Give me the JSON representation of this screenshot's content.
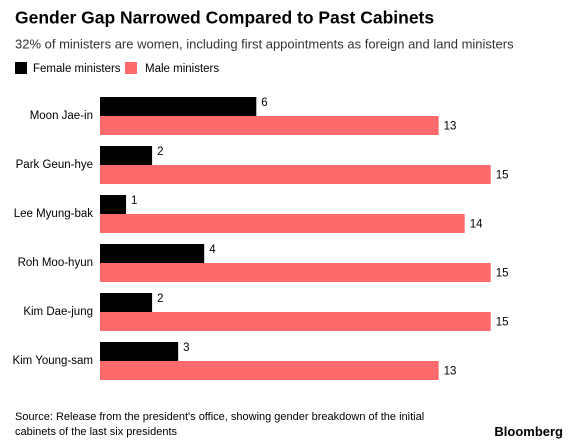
{
  "chart_data": {
    "type": "bar",
    "orientation": "horizontal",
    "title": "Gender Gap Narrowed Compared to Past Cabinets",
    "subtitle": "32% of ministers are women, including first appointments as foreign and land ministers",
    "categories": [
      "Moon Jae-in",
      "Park Geun-hye",
      "Lee Myung-bak",
      "Roh Moo-hyun",
      "Kim Dae-jung",
      "Kim Young-sam"
    ],
    "series": [
      {
        "name": "Female ministers",
        "color": "#000000",
        "values": [
          6,
          2,
          1,
          4,
          2,
          3
        ]
      },
      {
        "name": "Male ministers",
        "color": "#fd6a6b",
        "values": [
          13,
          15,
          14,
          15,
          15,
          13
        ]
      }
    ],
    "source": "Source: Release from the president's office, showing gender breakdown of the initial cabinets of the last six presidents",
    "brand": "Bloomberg"
  }
}
